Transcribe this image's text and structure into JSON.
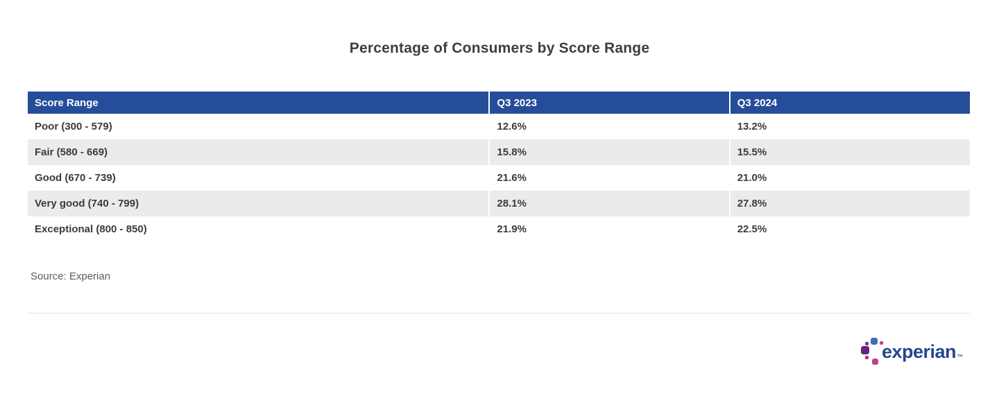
{
  "title": "Percentage of Consumers by Score Range",
  "table": {
    "columns": [
      "Score Range",
      "Q3 2023",
      "Q3 2024"
    ],
    "rows": [
      [
        "Poor (300 - 579)",
        "12.6%",
        "13.2%"
      ],
      [
        "Fair (580 - 669)",
        "15.8%",
        "15.5%"
      ],
      [
        "Good (670 - 739)",
        "21.6%",
        "21.0%"
      ],
      [
        "Very good (740 - 799)",
        "28.1%",
        "27.8%"
      ],
      [
        "Exceptional (800 - 850)",
        "21.9%",
        "22.5%"
      ]
    ]
  },
  "source": "Source: Experian",
  "logo": {
    "wordmark": "experian",
    "trademark": "™"
  },
  "colors": {
    "header_bg": "#254d9a",
    "row_alt_bg": "#ebebeb",
    "body_text": "#3b3b3b",
    "title_text": "#3d3d3d",
    "source_text": "#5c5c5c",
    "divider": "#e3e3e3",
    "logo_wordmark_blue": "#26478d",
    "logo_light_blue": "#406eb3",
    "logo_purple": "#632678",
    "logo_violet": "#82368c",
    "logo_magenta": "#ba2f7d",
    "logo_pink": "#e63888"
  },
  "chart_data": {
    "type": "table",
    "title": "Percentage of Consumers by Score Range",
    "categories": [
      "Poor (300 - 579)",
      "Fair (580 - 669)",
      "Good (670 - 739)",
      "Very good (740 - 799)",
      "Exceptional (800 - 850)"
    ],
    "series": [
      {
        "name": "Q3 2023",
        "values": [
          12.6,
          15.8,
          21.6,
          28.1,
          21.9
        ]
      },
      {
        "name": "Q3 2024",
        "values": [
          13.2,
          15.5,
          21.0,
          27.8,
          22.5
        ]
      }
    ],
    "unit": "percent",
    "source": "Experian",
    "legend_position": "none",
    "grid": false
  }
}
